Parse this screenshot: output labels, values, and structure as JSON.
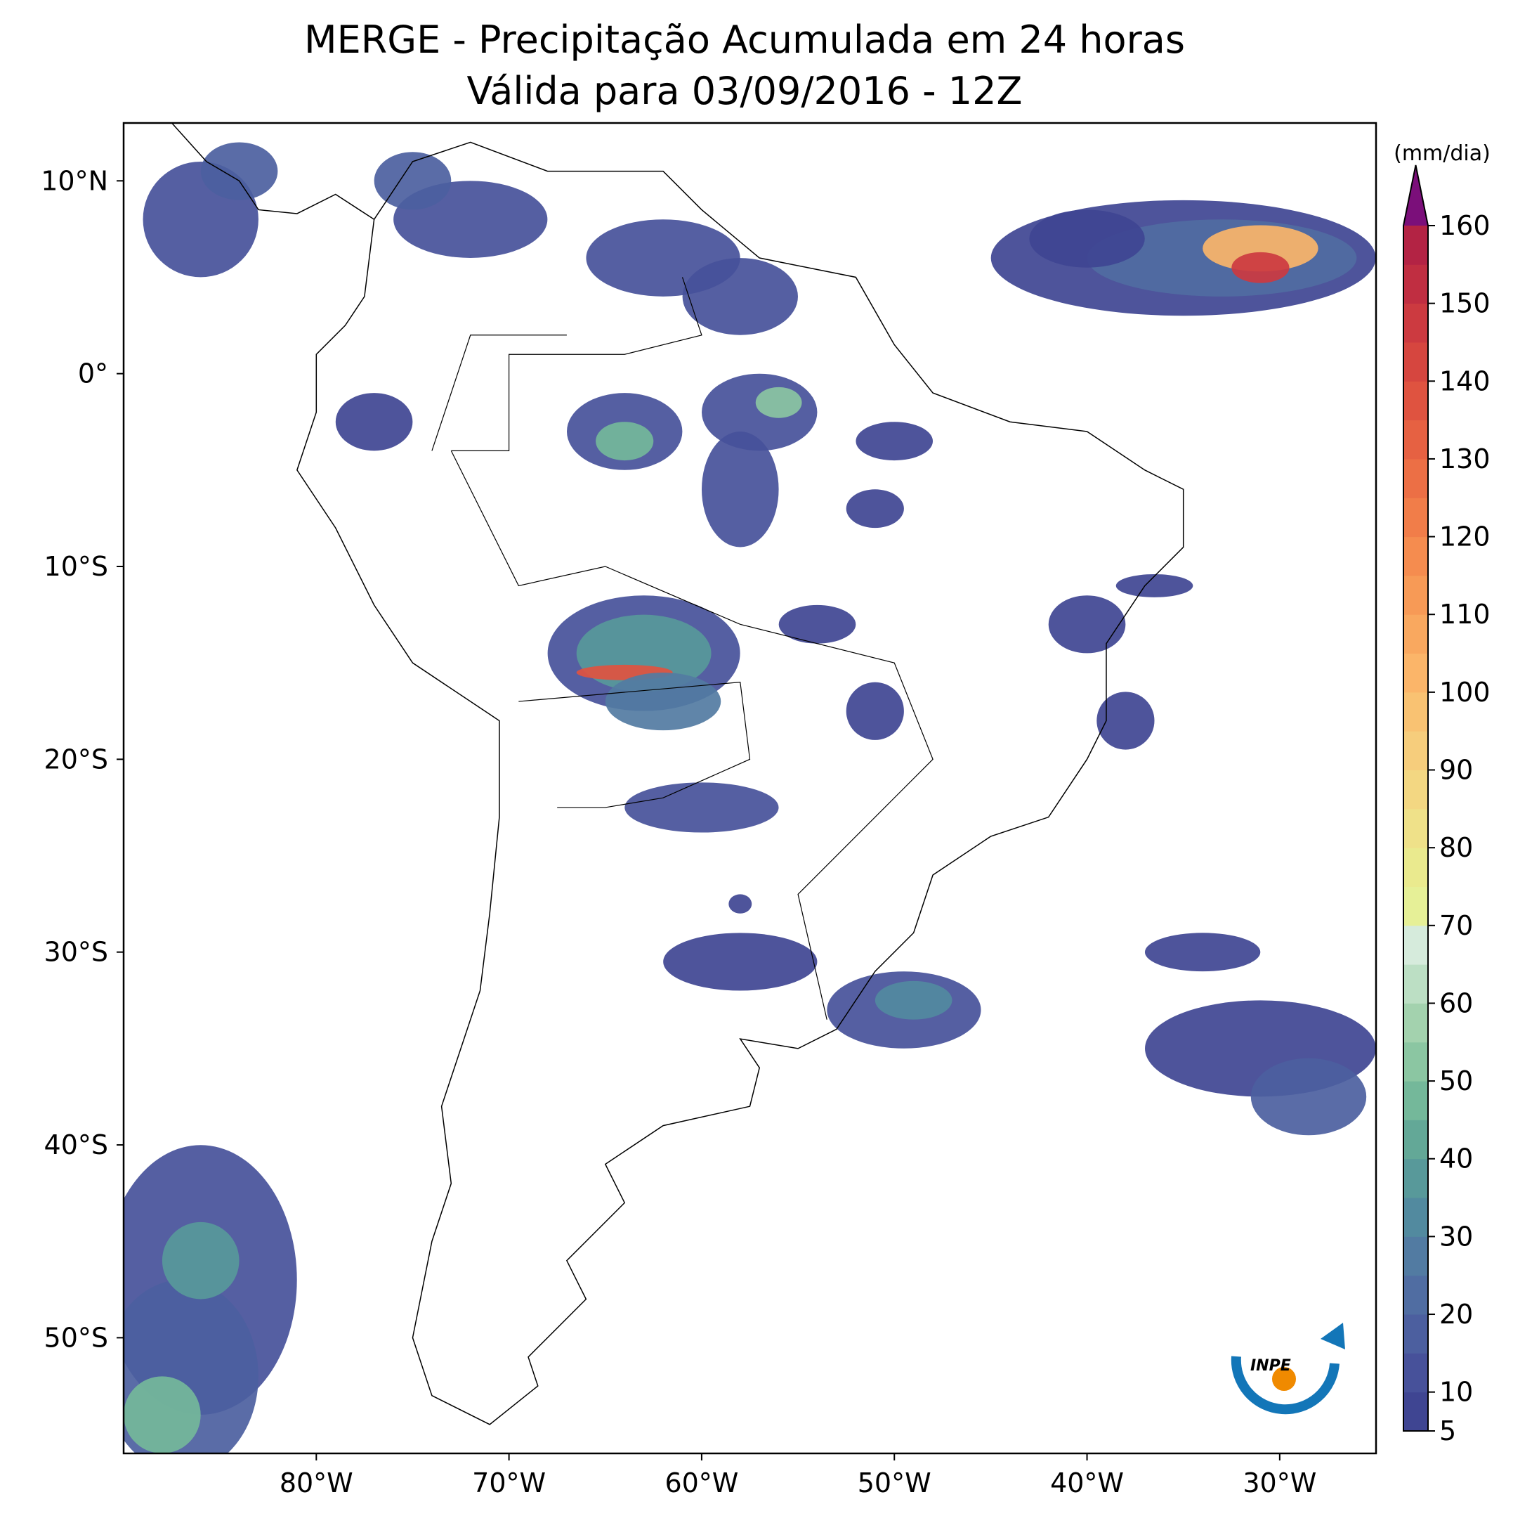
{
  "chart_data": {
    "type": "map",
    "title": "MERGE - Precipitação Acumulada em 24 horas",
    "subtitle": "Válida para 03/09/2016 - 12Z",
    "xlim": [
      -90,
      -25
    ],
    "ylim": [
      -56,
      13
    ],
    "xticks": [
      {
        "value": -80,
        "label": "80°W"
      },
      {
        "value": -70,
        "label": "70°W"
      },
      {
        "value": -60,
        "label": "60°W"
      },
      {
        "value": -50,
        "label": "50°W"
      },
      {
        "value": -40,
        "label": "40°W"
      },
      {
        "value": -30,
        "label": "30°W"
      }
    ],
    "yticks": [
      {
        "value": 10,
        "label": "10°N"
      },
      {
        "value": 0,
        "label": "0°"
      },
      {
        "value": -10,
        "label": "10°S"
      },
      {
        "value": -20,
        "label": "20°S"
      },
      {
        "value": -30,
        "label": "30°S"
      },
      {
        "value": -40,
        "label": "40°S"
      },
      {
        "value": -50,
        "label": "50°S"
      }
    ],
    "colorbar": {
      "label": "(mm/dia)",
      "clim": [
        5,
        160
      ],
      "ticks": [
        5,
        10,
        20,
        30,
        40,
        50,
        60,
        70,
        80,
        90,
        100,
        110,
        120,
        130,
        140,
        150,
        160
      ],
      "colors": [
        "#3f4592",
        "#47519a",
        "#4c5f9f",
        "#506da2",
        "#527ba2",
        "#528a9f",
        "#58999a",
        "#63a897",
        "#74b89a",
        "#8bc6a2",
        "#a3d2ae",
        "#bcdfc4",
        "#d6ebdc",
        "#e6f097",
        "#eaea8e",
        "#efe189",
        "#f3d782",
        "#f6cd7c",
        "#f9c272",
        "#fbb569",
        "#f9a85f",
        "#f79a56",
        "#f58c4f",
        "#f17d49",
        "#ec6f45",
        "#e66142",
        "#df5340",
        "#d6463f",
        "#cc3a40",
        "#c02e41",
        "#b32344"
      ],
      "extend_color": "#7b0f7a"
    },
    "logo": "INPE"
  }
}
